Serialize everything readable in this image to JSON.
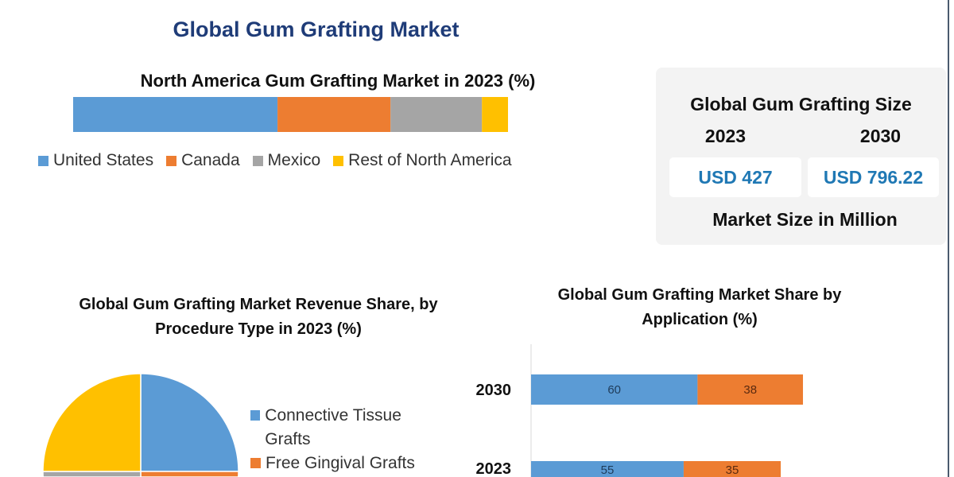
{
  "title": "Global Gum Grafting Market",
  "size_card": {
    "heading": "Global Gum Grafting Size",
    "years": [
      "2023",
      "2030"
    ],
    "values": [
      "USD 427",
      "USD 796.22"
    ],
    "footer": "Market Size in Million"
  },
  "chart_data": [
    {
      "type": "bar",
      "orientation": "horizontal-stacked",
      "title": "North America Gum Grafting Market in 2023 (%)",
      "categories": [
        "2023"
      ],
      "series": [
        {
          "name": "United States",
          "values": [
            47
          ],
          "color": "#5b9bd5"
        },
        {
          "name": "Canada",
          "values": [
            26
          ],
          "color": "#ed7d31"
        },
        {
          "name": "Mexico",
          "values": [
            21
          ],
          "color": "#a5a5a5"
        },
        {
          "name": "Rest of North America",
          "values": [
            6
          ],
          "color": "#ffc000"
        }
      ],
      "legend": "bottom"
    },
    {
      "type": "pie",
      "title": "Global Gum Grafting Market Revenue Share, by Procedure Type in 2023 (%)",
      "slices": [
        {
          "name": "Connective Tissue Grafts",
          "value": 25,
          "color": "#5b9bd5"
        },
        {
          "name": "Free Gingival Grafts",
          "value": 25,
          "color": "#ed7d31"
        },
        {
          "name": "",
          "value": 25,
          "color": "#a5a5a5"
        },
        {
          "name": "",
          "value": 25,
          "color": "#ffc000"
        }
      ],
      "legend": "right"
    },
    {
      "type": "bar",
      "orientation": "horizontal-stacked",
      "title": "Global Gum Grafting Market Share by Application (%)",
      "categories": [
        "2030",
        "2023"
      ],
      "series": [
        {
          "values": [
            60,
            55
          ],
          "color": "#5b9bd5"
        },
        {
          "values": [
            38,
            35
          ],
          "color": "#ed7d31"
        }
      ],
      "data_labels": true
    }
  ]
}
